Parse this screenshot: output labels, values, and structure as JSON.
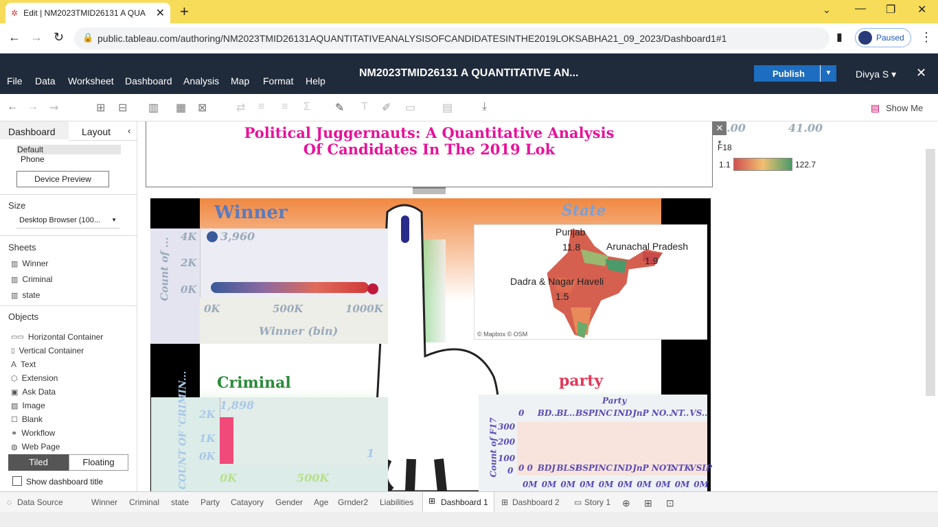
{
  "browser": {
    "tab_title": "Edit | NM2023TMID26131 A QUA",
    "url": "public.tableau.com/authoring/NM2023TMID26131AQUANTITATIVEANALYSISOFCANDIDATESINTHE2019LOKSABHA21_09_2023/Dashboard1#1",
    "profile_status": "Paused"
  },
  "menu": {
    "items": [
      "File",
      "Data",
      "Worksheet",
      "Dashboard",
      "Analysis",
      "Map",
      "Format",
      "Help"
    ],
    "workbook_title": "NM2023TMID26131 A QUANTITATIVE AN...",
    "publish": "Publish",
    "user": "Divya S ▾"
  },
  "toolbar": {
    "show_me": "Show Me"
  },
  "left": {
    "tabs": [
      "Dashboard",
      "Layout"
    ],
    "devices": [
      "Default",
      "Phone"
    ],
    "device_preview": "Device Preview",
    "size_label": "Size",
    "size_value": "Desktop Browser (100...",
    "sheets_label": "Sheets",
    "sheets": [
      "Winner",
      "Criminal",
      "state"
    ],
    "objects_label": "Objects",
    "objects": [
      "Horizontal Container",
      "Vertical Container",
      "Text",
      "Extension",
      "Ask Data",
      "Image",
      "Blank",
      "Workflow",
      "Web Page"
    ],
    "tiled": "Tiled",
    "floating": "Floating",
    "show_title": "Show dashboard title"
  },
  "dashboard": {
    "title_line1": "Political Juggernauts: A Quantitative Analysis",
    "title_line2": "Of Candidates In The 2019 Lok",
    "legend": {
      "top_left": ".00",
      "top_right": "41.00",
      "field": "F18",
      "min": "1.1",
      "max": "122.7"
    },
    "winner": {
      "title": "Winner",
      "ylabel": "Count of ...",
      "xlabel": "Winner (bin)",
      "yticks": [
        "4K",
        "2K",
        "0K"
      ],
      "xticks": [
        "0K",
        "500K",
        "1000K"
      ],
      "label": "3,960"
    },
    "state": {
      "title": "State",
      "labels": [
        {
          "name": "Punjab",
          "value": "11.8"
        },
        {
          "name": "Arunachal Pradesh",
          "value": "1.9"
        },
        {
          "name": "Dadra & Nagar Haveli",
          "value": "1.5"
        }
      ],
      "credit": "© Mapbox © OSM"
    },
    "criminal": {
      "title": "Criminal",
      "ylabel": "COUNT OF 'CRIMIN...",
      "yticks": [
        "2K",
        "1K",
        "0K"
      ],
      "xticks": [
        "0K",
        "500K"
      ],
      "label1": "1,898",
      "label2": "1"
    },
    "party": {
      "title": "party",
      "header": "Party",
      "cols": [
        "0",
        "BD..",
        "BL..",
        "BSP",
        "INC",
        "IND",
        "JnP",
        "NO..",
        "NT..",
        "VS.."
      ],
      "ylabel": "Count of F17",
      "yticks": [
        "300",
        "200",
        "100",
        "0"
      ],
      "bottom": [
        "0 0",
        "BDJ",
        "BLSI",
        "BSP",
        "INC",
        "IND",
        "JnP",
        "NOT.",
        "NTK",
        "VSIP"
      ],
      "mrow": "0M"
    }
  },
  "sheet_tabs": [
    "Data Source",
    "Winner",
    "Criminal",
    "state",
    "Party",
    "Catayory",
    "Gender",
    "Age",
    "Grnder2",
    "Liabilities",
    "Dashboard 1",
    "Dashboard 2",
    "Story 1"
  ]
}
